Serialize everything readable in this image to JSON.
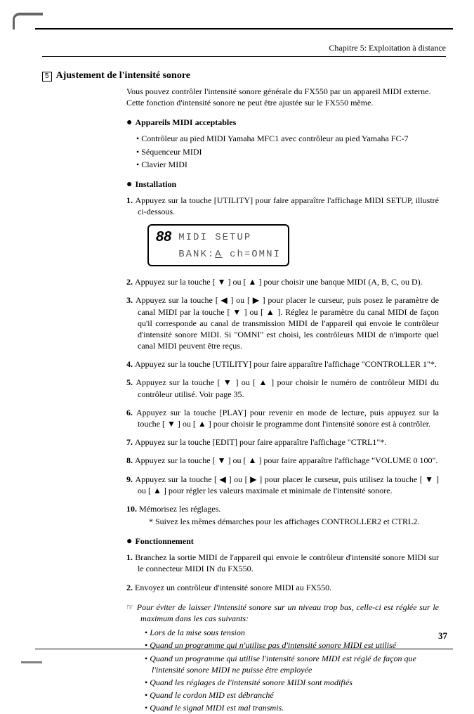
{
  "chapter_header": "Chapitre 5: Exploitation à distance",
  "section_number": "5",
  "section_title": "Ajustement de l'intensité sonore",
  "intro": "Vous pouvez contrôler l'intensité sonore générale du FX550 par un appareil MIDI externe. Cette fonction d'intensité sonore ne peut être ajustée sur le FX550 même.",
  "h_devices": "Appareils MIDI acceptables",
  "devices": {
    "d1": "Contrôleur au pied MIDI Yamaha MFC1 avec contrôleur au pied Yamaha FC-7",
    "d2": "Séquenceur MIDI",
    "d3": "Clavier MIDI"
  },
  "h_install": "Installation",
  "install": {
    "s1": "Appuyez sur la touche [UTILITY] pour faire apparaître l'affichage MIDI SETUP, illustré ci-dessous.",
    "s2": "Appuyez sur la touche [ ▼ ] ou [ ▲ ] pour choisir une banque MIDI (A, B, C, ou D).",
    "s3": "Appuyez sur la touche [ ◀ ] ou [ ▶ ] pour placer le curseur, puis posez le paramètre de canal MIDI par la touche [ ▼ ] ou [ ▲ ]. Réglez le paramètre du canal MIDI de façon qu'il corresponde au canal de transmission MIDI de l'appareil qui envoie le contrôleur d'intensité sonore MIDI. Si \"OMNI\" est choisi, les contrôleurs MIDI de n'importe quel canal MIDI peuvent être reçus.",
    "s4": "Appuyez sur la touche [UTILITY] pour faire apparaître l'affichage \"CONTROLLER 1\"*.",
    "s5": "Appuyez sur la touche [ ▼ ] ou [ ▲ ] pour choisir le numéro de contrôleur MIDI du contrôleur utilisé. Voir page 35.",
    "s6": "Appuyez sur la touche [PLAY] pour revenir en mode de lecture, puis appuyez sur la touche [ ▼ ] ou [ ▲ ] pour choisir le programme dont l'intensité sonore est à contrôler.",
    "s7": "Appuyez sur la touche [EDIT] pour faire apparaître l'affichage \"CTRL1\"*.",
    "s8": "Appuyez sur la touche [ ▼ ] ou [ ▲ ] pour faire apparaître l'affichage \"VOLUME 0 100\".",
    "s9": "Appuyez sur la touche [ ◀ ] ou [ ▶ ] pour placer le curseur, puis utilisez la touche [ ▼ ] ou [ ▲ ] pour régler les valeurs maximale et minimale de l'intensité sonore.",
    "s10": "Mémorisez les réglages.",
    "s10_note": "* Suivez les mêmes démarches pour les affichages CONTROLLER2 et CTRL2."
  },
  "lcd": {
    "num": "88",
    "line1": "MIDI SETUP",
    "line2a": "BANK:",
    "line2b": "A",
    "line2c": " ch=OMNI"
  },
  "h_func": "Fonctionnement",
  "func": {
    "s1": "Branchez la sortie MIDI de l'appareil qui envoie le contrôleur d'intensité sonore MIDI sur le connecteur MIDI IN du FX550.",
    "s2": "Envoyez un contrôleur d'intensité sonore MIDI au FX550."
  },
  "note_lead": "Pour éviter de laisser l'intensité sonore sur un niveau trop bas, celle-ci est réglée sur le maximum dans les cas suivants:",
  "note": {
    "n1": "Lors de la mise sous tension",
    "n2": "Quand un programme qui n'utilise pas d'intensité sonore MIDI est utilisé",
    "n3": "Quand un programme qui utilise l'intensité sonore MIDI est réglé de façon que l'intensité sonore MIDI ne puisse être employée",
    "n4": "Quand les réglages de l'intensité sonore MIDI sont modifiés",
    "n5": "Quand le cordon MID est débranché",
    "n6": "Quand le signal MIDI est mal transmis."
  },
  "page_number": "37"
}
